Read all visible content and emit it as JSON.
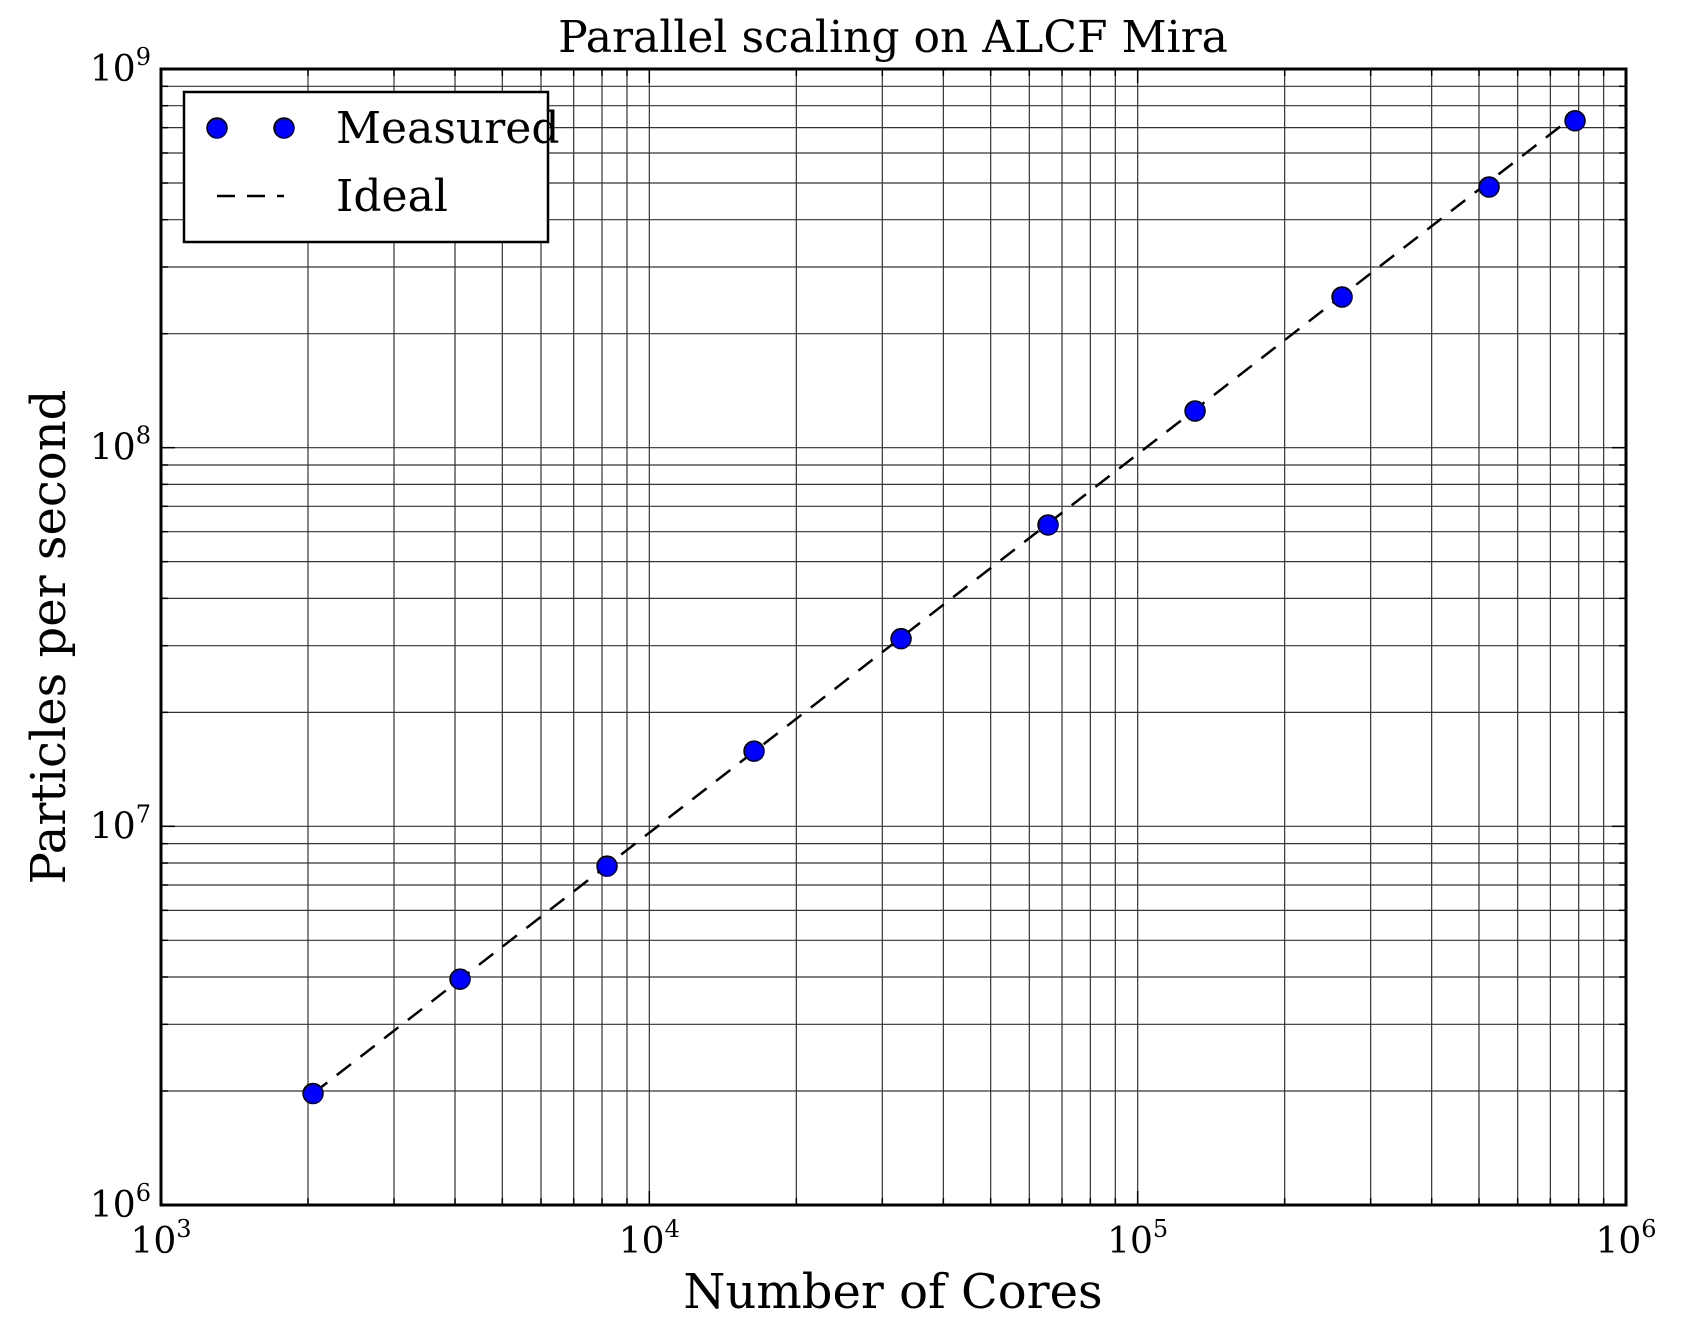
{
  "chart_data": {
    "type": "scatter",
    "title": "Parallel scaling on ALCF Mira",
    "xlabel": "Number of Cores",
    "ylabel": "Particles per second",
    "xscale": "log",
    "yscale": "log",
    "xlim": [
      1000,
      1000000
    ],
    "ylim": [
      1000000,
      1000000000
    ],
    "grid": true,
    "grid_minor": true,
    "legend_position": "top-left",
    "x_ticks": [
      {
        "base": "10",
        "exp": "3"
      },
      {
        "base": "10",
        "exp": "4"
      },
      {
        "base": "10",
        "exp": "5"
      },
      {
        "base": "10",
        "exp": "6"
      }
    ],
    "y_ticks": [
      {
        "base": "10",
        "exp": "6"
      },
      {
        "base": "10",
        "exp": "7"
      },
      {
        "base": "10",
        "exp": "8"
      },
      {
        "base": "10",
        "exp": "9"
      }
    ],
    "series": [
      {
        "name": "Measured",
        "style": "markers",
        "color": "#0000ff",
        "x": [
          2048,
          4096,
          8192,
          16384,
          32768,
          65536,
          131072,
          262144,
          524288,
          786432
        ],
        "y": [
          1970000,
          3950000,
          7850000,
          15800000,
          31300000,
          62500000,
          125000000,
          250000000,
          488000000,
          730000000
        ]
      },
      {
        "name": "Ideal",
        "style": "dashed-line",
        "color": "#000000",
        "x": [
          2048,
          786432
        ],
        "y": [
          1970000,
          756000000
        ]
      }
    ]
  }
}
